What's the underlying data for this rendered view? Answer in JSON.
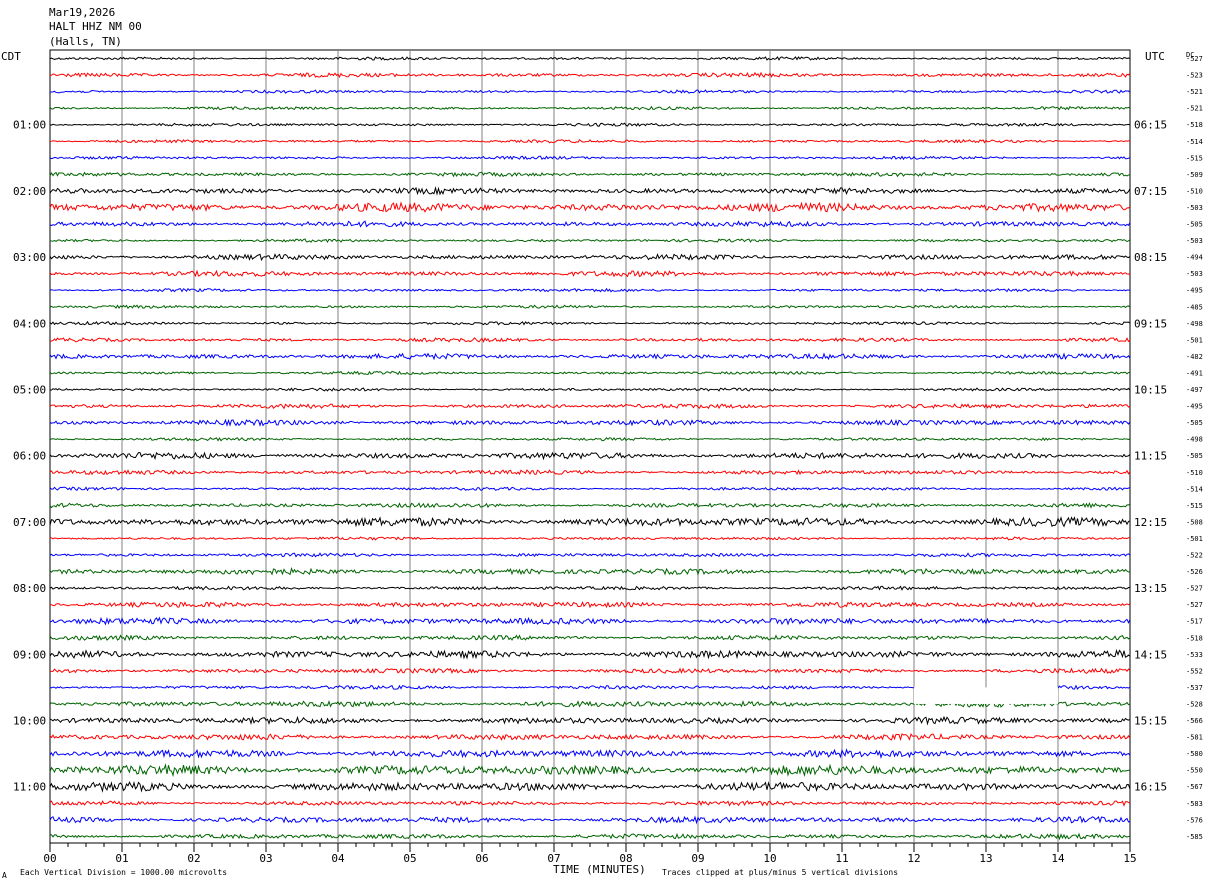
{
  "header": {
    "date": "Mar19,2026",
    "station": "HALT HHZ NM 00",
    "location": "(Halls, TN)"
  },
  "left_tz": "CDT",
  "right_tz": "UTC",
  "dc_label": "DC",
  "footer": {
    "left_note": "Each Vertical Division = 1000.00 microvolts",
    "xlabel": "TIME (MINUTES)",
    "right_note": "Traces clipped at plus/minus 5 vertical divisions",
    "corner_mark": "A"
  },
  "colors": {
    "trace_cycle": [
      "#000000",
      "#ff0000",
      "#0000ff",
      "#006400"
    ],
    "grid": "#808080"
  },
  "chart_data": {
    "type": "line",
    "title": "HALT HHZ NM 00",
    "xlabel": "TIME (MINUTES)",
    "ylabel": "",
    "xlim": [
      0,
      15
    ],
    "x_ticks": [
      "00",
      "01",
      "02",
      "03",
      "04",
      "05",
      "06",
      "07",
      "08",
      "09",
      "10",
      "11",
      "12",
      "13",
      "14",
      "15"
    ],
    "left_hour_labels": [
      "01:00",
      "02:00",
      "03:00",
      "04:00",
      "05:00",
      "06:00",
      "07:00",
      "08:00",
      "09:00",
      "10:00",
      "11:00"
    ],
    "right_hour_labels": [
      "06:15",
      "07:15",
      "08:15",
      "09:15",
      "10:15",
      "11:15",
      "12:15",
      "13:15",
      "14:15",
      "15:15",
      "16:15"
    ],
    "dc_offsets": [
      -527,
      -523,
      -521,
      -521,
      -518,
      -514,
      -515,
      -509,
      -510,
      -503,
      -505,
      -503,
      -494,
      -503,
      -495,
      -485,
      -498,
      -501,
      -482,
      -491,
      -497,
      -495,
      -505,
      -498,
      -505,
      -510,
      -514,
      -515,
      -508,
      -501,
      -522,
      -526,
      -527,
      -527,
      -517,
      -518,
      -533,
      -552,
      -537,
      -528,
      -566,
      -581,
      -580,
      -550,
      -567,
      -583,
      -576,
      -585
    ],
    "trace_amplitude": [
      1.0,
      1.4,
      1.0,
      1.0,
      1.0,
      1.0,
      1.0,
      1.3,
      2.0,
      3.0,
      1.8,
      1.0,
      1.8,
      1.8,
      1.0,
      1.0,
      1.0,
      1.3,
      1.8,
      1.0,
      1.0,
      1.5,
      1.8,
      1.0,
      2.2,
      1.5,
      1.0,
      1.5,
      3.0,
      1.0,
      1.2,
      2.0,
      1.2,
      1.8,
      2.2,
      1.6,
      2.5,
      1.6,
      1.3,
      2.0,
      2.2,
      2.0,
      2.6,
      3.5,
      3.0,
      1.5,
      2.0,
      1.6
    ],
    "gaps": [
      {
        "trace_index": 38,
        "x_start": 12.0,
        "x_end": 14.0
      }
    ],
    "grid": true
  }
}
